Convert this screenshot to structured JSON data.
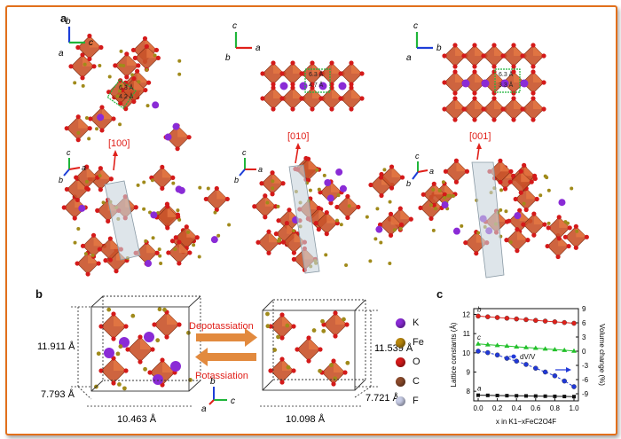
{
  "figure": {
    "panel_a": {
      "label": "a",
      "axes": {
        "a": "a",
        "b": "b",
        "c": "c"
      },
      "distances": [
        "6.3 Å",
        "4.2 Å",
        "6.3 Å",
        "4.7 Å",
        "6.3 Å",
        "3.3 Å"
      ],
      "directions": [
        "[100]",
        "[010]",
        "[001]"
      ]
    },
    "panel_b": {
      "label": "b",
      "left": {
        "height": "11.911 Å",
        "depth": "7.793 Å",
        "width": "10.463 Å"
      },
      "right": {
        "height": "11.539 Å",
        "depth": "7.721 Å",
        "width": "10.098 Å"
      },
      "depotassiation": "Depotassiation",
      "potassiation": "Potassiation",
      "legend": [
        {
          "symbol": "K",
          "color": "#8a2bd6"
        },
        {
          "symbol": "Fe",
          "color": "#b8860b"
        },
        {
          "symbol": "O",
          "color": "#d41a1a"
        },
        {
          "symbol": "C",
          "color": "#8b4a2b"
        },
        {
          "symbol": "F",
          "color": "#c8cde6"
        }
      ]
    },
    "panel_c": {
      "label": "c",
      "chart_data": {
        "type": "line",
        "xlabel": "x in K1−xFeC2O4F",
        "ylabel": "Lattice constants (Å)",
        "y2label": "Volume change (%)",
        "x": [
          0.0,
          0.1,
          0.2,
          0.3,
          0.4,
          0.5,
          0.6,
          0.7,
          0.8,
          0.9,
          1.0
        ],
        "xticks": [
          "0.0",
          "0.2",
          "0.4",
          "0.6",
          "0.8",
          "1.0"
        ],
        "yticks": [
          "8",
          "9",
          "10",
          "11",
          "12"
        ],
        "y2ticks": [
          "9",
          "6",
          "3",
          "0",
          "-3",
          "-6",
          "-9"
        ],
        "ylim": [
          7.5,
          12.3
        ],
        "y2lim": [
          -10.5,
          9.0
        ],
        "series": [
          {
            "name": "b",
            "axis": "left",
            "color": "#e0201a",
            "marker": "circle",
            "values": [
              11.911,
              11.875,
              11.838,
              11.801,
              11.764,
              11.727,
              11.689,
              11.651,
              11.614,
              11.577,
              11.539
            ]
          },
          {
            "name": "c",
            "axis": "left",
            "color": "#22c02a",
            "marker": "triangle",
            "values": [
              10.463,
              10.427,
              10.39,
              10.354,
              10.317,
              10.281,
              10.244,
              10.208,
              10.171,
              10.135,
              10.098
            ]
          },
          {
            "name": "a",
            "axis": "left",
            "color": "#111111",
            "marker": "square",
            "values": [
              7.793,
              7.786,
              7.779,
              7.771,
              7.764,
              7.757,
              7.75,
              7.743,
              7.735,
              7.728,
              7.721
            ]
          },
          {
            "name": "dV/V",
            "axis": "right",
            "color": "#2038d8",
            "marker": "circle",
            "dashed": true,
            "values": [
              0.0,
              -0.3,
              -0.8,
              -1.5,
              -2.1,
              -2.8,
              -3.6,
              -4.4,
              -5.2,
              -6.3,
              -7.5
            ]
          }
        ]
      }
    }
  }
}
